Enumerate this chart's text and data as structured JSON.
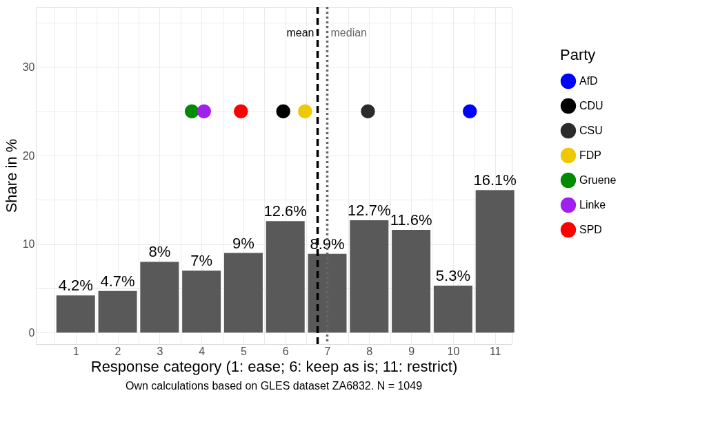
{
  "chart_data": {
    "type": "bar",
    "xlabel": "Response category (1: ease; 6: keep as is; 11: restrict)",
    "ylabel": "Share in %",
    "legend_title": "Party",
    "legend": "right",
    "grid": true,
    "x": [
      1,
      2,
      3,
      4,
      5,
      6,
      7,
      8,
      9,
      10,
      11
    ],
    "xlim": [
      0.05,
      11.4
    ],
    "xticks": [
      {
        "value": 0.5,
        "label": null
      },
      1,
      {
        "value": 1.5,
        "label": null
      },
      2,
      {
        "value": 2.5,
        "label": null
      },
      3,
      {
        "value": 3.5,
        "label": null
      },
      4,
      {
        "value": 4.5,
        "label": null
      },
      5,
      {
        "value": 5.5,
        "label": null
      },
      6,
      {
        "value": 6.5,
        "label": null
      },
      7,
      {
        "value": 7.5,
        "label": null
      },
      8,
      {
        "value": 8.5,
        "label": null
      },
      9,
      {
        "value": 9.5,
        "label": null
      },
      10,
      {
        "value": 10.5,
        "label": null
      },
      11
    ],
    "ylim": [
      -1.3,
      36.8
    ],
    "yticks": [
      0,
      {
        "value": 5,
        "label": null
      },
      10,
      {
        "value": 15,
        "label": null
      },
      20,
      {
        "value": 25,
        "label": null
      },
      30,
      {
        "value": 35,
        "label": null
      }
    ],
    "series": [
      {
        "type": "bar",
        "color": "#595959",
        "values": [
          4.2,
          4.7,
          8,
          7,
          9,
          12.6,
          8.9,
          12.7,
          11.6,
          5.3,
          16.1
        ],
        "value_labels": [
          "4.2%",
          "4.7%",
          "8%",
          "7%",
          "9%",
          "12.6%",
          "8.9%",
          "12.7%",
          "11.6%",
          "5.3%",
          "16.1%"
        ]
      },
      {
        "type": "scatter",
        "name": "AfD",
        "color": "#0000ff",
        "x": [
          10.4
        ],
        "values": [
          25
        ]
      },
      {
        "type": "scatter",
        "name": "CDU",
        "color": "#000000",
        "x": [
          5.95
        ],
        "values": [
          25
        ]
      },
      {
        "type": "scatter",
        "name": "CSU",
        "color": "#2b2b2b",
        "x": [
          7.97
        ],
        "values": [
          25
        ]
      },
      {
        "type": "scatter",
        "name": "FDP",
        "color": "#eec900",
        "x": [
          6.47
        ],
        "values": [
          25
        ]
      },
      {
        "type": "scatter",
        "name": "Gruene",
        "color": "#008b00",
        "x": [
          3.77
        ],
        "values": [
          25
        ]
      },
      {
        "type": "scatter",
        "name": "Linke",
        "color": "#a020f0",
        "x": [
          4.06
        ],
        "values": [
          25
        ]
      },
      {
        "type": "scatter",
        "name": "SPD",
        "color": "#ff0000",
        "x": [
          4.94
        ],
        "values": [
          25
        ]
      }
    ],
    "marker": "circle",
    "ref_lines": [
      {
        "axis": "x",
        "value": 6.77,
        "label": "mean",
        "color": "#000000",
        "line_style": "dashed"
      },
      {
        "axis": "x",
        "value": 7,
        "label": "median",
        "color": "#666666",
        "line_style": "dotted"
      }
    ],
    "annotations": [
      "Own calculations based on GLES dataset ZA6832. N = 1049"
    ]
  }
}
